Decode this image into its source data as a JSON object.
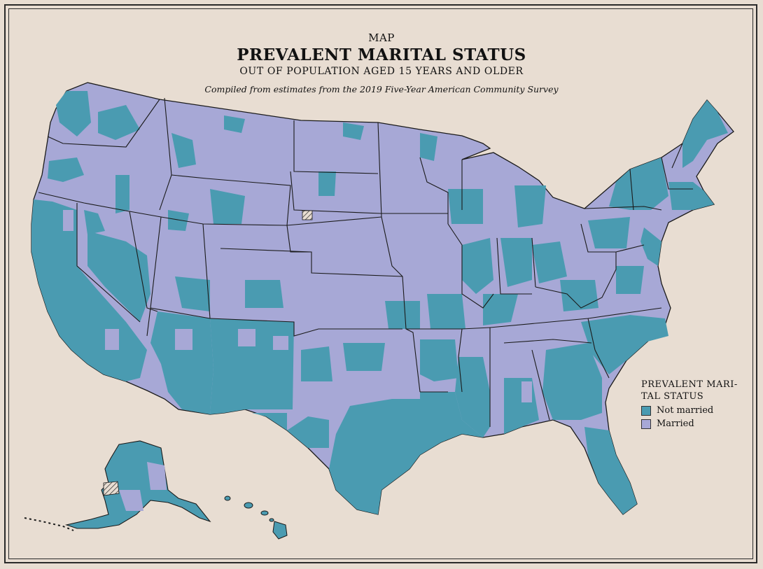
{
  "header": {
    "kicker": "MAP",
    "title": "PREVALENT MARITAL STATUS",
    "subtitle": "OUT OF POPULATION AGED 15 YEARS AND OLDER",
    "credit": "Compiled from estimates from the 2019 Five-Year American Community Survey"
  },
  "legend": {
    "title_line1": "PREVALENT MARI-",
    "title_line2": "TAL STATUS",
    "items": [
      {
        "label": "Not married",
        "color": "#4a9bb1"
      },
      {
        "label": "Married",
        "color": "#a7a8d6"
      }
    ]
  },
  "colors": {
    "background": "#e8ddd2",
    "not_married": "#4a9bb1",
    "married": "#a7a8d6",
    "border": "#1a1a1a"
  }
}
